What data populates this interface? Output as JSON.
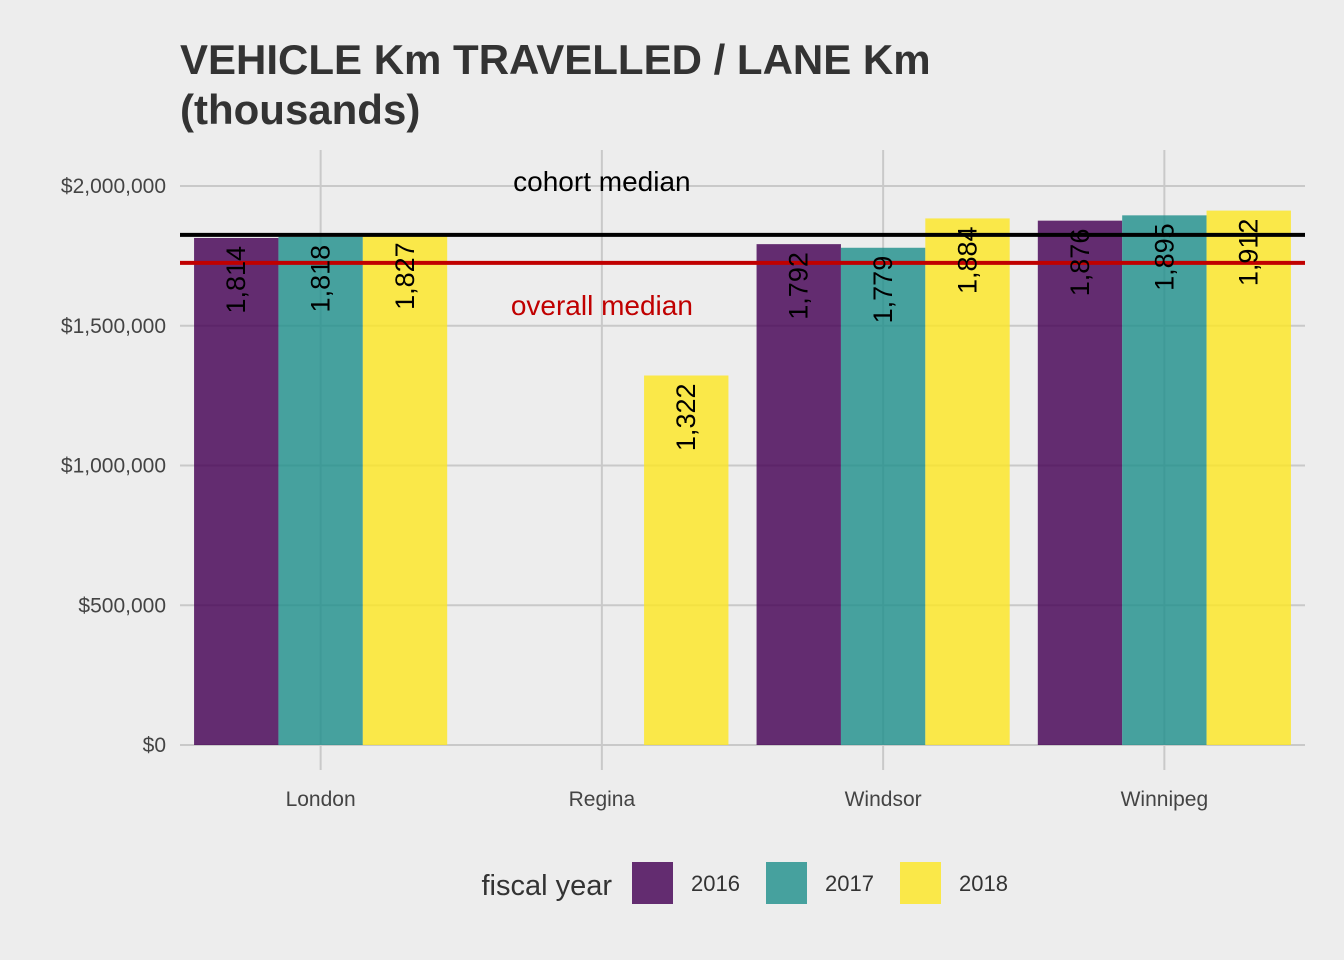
{
  "chart_data": {
    "type": "bar",
    "title_line1": "VEHICLE Km TRAVELLED / LANE Km",
    "title_line2": "(thousands)",
    "categories": [
      "London",
      "Regina",
      "Windsor",
      "Winnipeg"
    ],
    "y_ticks": [
      0,
      500000,
      1000000,
      1500000,
      2000000
    ],
    "y_tick_labels": [
      "$0",
      "$500,000",
      "$1,000,000",
      "$1,500,000",
      "$2,000,000"
    ],
    "ylim": [
      0,
      2120000
    ],
    "grid": true,
    "series": [
      {
        "name": "2016",
        "color": "#440154",
        "values": [
          1814000,
          null,
          1792000,
          1876000
        ],
        "labels": [
          "1,814",
          "",
          "1,792",
          "1,876"
        ]
      },
      {
        "name": "2017",
        "color": "#21908c",
        "values": [
          1818000,
          null,
          1779000,
          1895000
        ],
        "labels": [
          "1,818",
          "",
          "1,779",
          "1,895"
        ]
      },
      {
        "name": "2018",
        "color": "#fde725",
        "values": [
          1827000,
          1322000,
          1884000,
          1912000
        ],
        "labels": [
          "1,827",
          "1,322",
          "1,884",
          "1,912"
        ]
      }
    ],
    "reference_lines": [
      {
        "label": "cohort median",
        "value": 1825000,
        "color": "#000000"
      },
      {
        "label": "overall median",
        "value": 1725000,
        "color": "#c00000"
      }
    ],
    "legend": {
      "title": "fiscal year",
      "position": "bottom"
    }
  }
}
